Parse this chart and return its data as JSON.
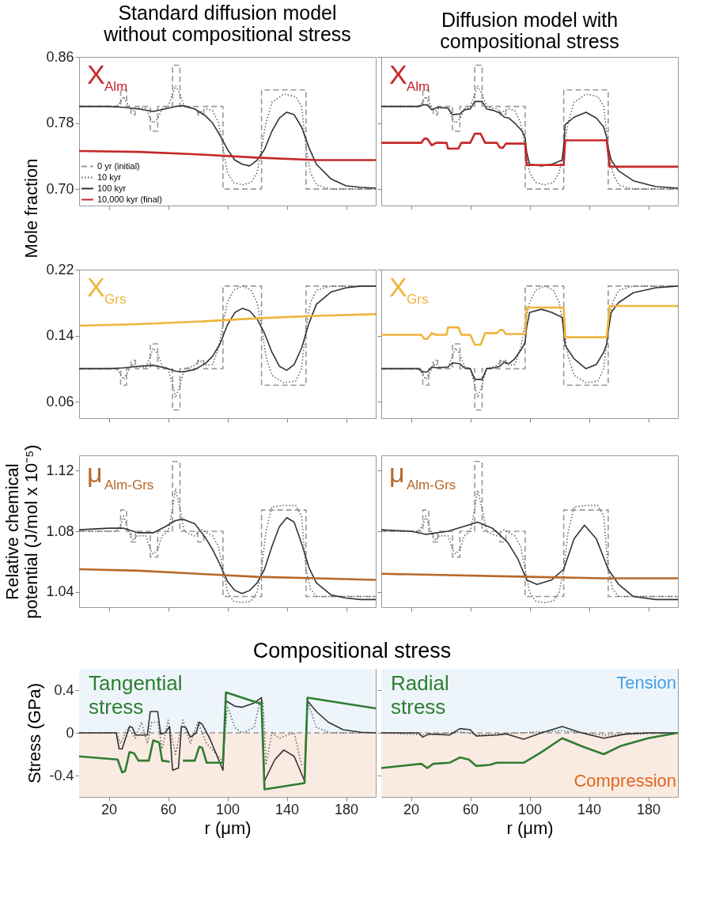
{
  "chart_data": [
    {
      "type": "line",
      "title": "Standard diffusion model without compositional stress",
      "ylabel": "Mole fraction",
      "xlim": [
        0,
        200
      ],
      "ylim": [
        0.68,
        0.86
      ],
      "xticks": [
        20,
        60,
        100,
        140,
        180
      ],
      "yticks": [
        {
          "value": 0.7,
          "label": "0.70"
        },
        0.78,
        0.86
      ],
      "tick_labels": "y",
      "annotations": [
        "X$_{Alm}$"
      ],
      "legend": "bottom left",
      "series": [
        {
          "name": "0 yr (initial)",
          "color": "#999999",
          "line_style": "dashed",
          "x": [
            0,
            28,
            28,
            32,
            32,
            35,
            35,
            38,
            38,
            48,
            48,
            53,
            53,
            63,
            63,
            68,
            68,
            80,
            80,
            84,
            84,
            97,
            97,
            123,
            123,
            153,
            153,
            200
          ],
          "values": [
            0.8,
            0.8,
            0.82,
            0.82,
            0.8,
            0.8,
            0.79,
            0.79,
            0.8,
            0.8,
            0.77,
            0.77,
            0.8,
            0.8,
            0.85,
            0.85,
            0.8,
            0.8,
            0.79,
            0.79,
            0.8,
            0.8,
            0.7,
            0.7,
            0.82,
            0.82,
            0.7,
            0.7
          ]
        },
        {
          "name": "10 kyr",
          "color": "#666666",
          "line_style": "dotted",
          "x": [
            0,
            25,
            28,
            30,
            32,
            35,
            37,
            39,
            45,
            48,
            50,
            53,
            56,
            60,
            63,
            65,
            68,
            71,
            75,
            78,
            81,
            83,
            86,
            90,
            94,
            97,
            100,
            104,
            110,
            116,
            120,
            123,
            126,
            130,
            138,
            146,
            150,
            153,
            156,
            160,
            170,
            200
          ],
          "values": [
            0.8,
            0.8,
            0.805,
            0.812,
            0.805,
            0.797,
            0.795,
            0.798,
            0.798,
            0.785,
            0.78,
            0.785,
            0.797,
            0.8,
            0.815,
            0.825,
            0.815,
            0.8,
            0.798,
            0.797,
            0.792,
            0.795,
            0.797,
            0.795,
            0.78,
            0.75,
            0.72,
            0.708,
            0.705,
            0.708,
            0.72,
            0.75,
            0.78,
            0.805,
            0.815,
            0.812,
            0.8,
            0.75,
            0.72,
            0.705,
            0.7,
            0.7
          ]
        },
        {
          "name": "100 kyr",
          "color": "#333333",
          "line_style": "solid",
          "x": [
            0,
            20,
            30,
            40,
            50,
            58,
            65,
            70,
            78,
            85,
            90,
            95,
            100,
            105,
            110,
            115,
            120,
            125,
            130,
            135,
            140,
            145,
            150,
            155,
            160,
            170,
            180,
            190,
            200
          ],
          "values": [
            0.8,
            0.8,
            0.799,
            0.797,
            0.794,
            0.797,
            0.8,
            0.801,
            0.797,
            0.789,
            0.78,
            0.765,
            0.748,
            0.735,
            0.73,
            0.728,
            0.735,
            0.748,
            0.77,
            0.786,
            0.793,
            0.79,
            0.775,
            0.75,
            0.73,
            0.712,
            0.704,
            0.702,
            0.701
          ]
        },
        {
          "name": "10,000 kyr (final)",
          "color": "#c62828",
          "line_style": "solid",
          "x": [
            0,
            40,
            80,
            120,
            160,
            200
          ],
          "values": [
            0.746,
            0.745,
            0.742,
            0.738,
            0.735,
            0.735
          ]
        }
      ]
    },
    {
      "type": "line",
      "title": "Diffusion model with compositional stress",
      "xlim": [
        0,
        200
      ],
      "ylim": [
        0.68,
        0.86
      ],
      "xticks": [
        20,
        60,
        100,
        140,
        180
      ],
      "yticks": [
        0.7,
        0.78,
        0.86
      ],
      "tick_labels": false,
      "annotations": [
        "X$_{Alm}$"
      ],
      "series": [
        {
          "color": "#999999",
          "line_style": "dashed",
          "x": [
            0,
            28,
            28,
            32,
            32,
            35,
            35,
            38,
            38,
            48,
            48,
            53,
            53,
            63,
            63,
            68,
            68,
            80,
            80,
            84,
            84,
            97,
            97,
            123,
            123,
            153,
            153,
            200
          ],
          "values": [
            0.8,
            0.8,
            0.82,
            0.82,
            0.8,
            0.8,
            0.79,
            0.79,
            0.8,
            0.8,
            0.77,
            0.77,
            0.8,
            0.8,
            0.85,
            0.85,
            0.8,
            0.8,
            0.79,
            0.79,
            0.8,
            0.8,
            0.7,
            0.7,
            0.82,
            0.82,
            0.7,
            0.7
          ]
        },
        {
          "color": "#666666",
          "line_style": "dotted",
          "x": [
            0,
            25,
            28,
            30,
            32,
            35,
            37,
            39,
            45,
            48,
            50,
            53,
            56,
            60,
            63,
            65,
            68,
            71,
            75,
            78,
            81,
            83,
            86,
            90,
            94,
            97,
            100,
            104,
            110,
            116,
            120,
            123,
            126,
            130,
            138,
            146,
            150,
            153,
            156,
            160,
            170,
            200
          ],
          "values": [
            0.8,
            0.8,
            0.805,
            0.812,
            0.805,
            0.797,
            0.795,
            0.798,
            0.798,
            0.785,
            0.78,
            0.785,
            0.797,
            0.8,
            0.815,
            0.825,
            0.815,
            0.8,
            0.798,
            0.797,
            0.792,
            0.795,
            0.797,
            0.795,
            0.78,
            0.75,
            0.72,
            0.708,
            0.705,
            0.708,
            0.72,
            0.75,
            0.78,
            0.805,
            0.815,
            0.812,
            0.8,
            0.75,
            0.72,
            0.705,
            0.7,
            0.7
          ]
        },
        {
          "color": "#333333",
          "line_style": "solid",
          "x": [
            0,
            25,
            28,
            31,
            34,
            38,
            45,
            48,
            53,
            56,
            60,
            63,
            68,
            71,
            76,
            80,
            83,
            86,
            90,
            95,
            97,
            98,
            100,
            108,
            115,
            122,
            123,
            124,
            130,
            138,
            145,
            150,
            152,
            153,
            155,
            160,
            170,
            185,
            200
          ],
          "values": [
            0.8,
            0.8,
            0.802,
            0.802,
            0.796,
            0.799,
            0.798,
            0.79,
            0.791,
            0.796,
            0.797,
            0.806,
            0.806,
            0.797,
            0.795,
            0.792,
            0.787,
            0.786,
            0.78,
            0.77,
            0.762,
            0.745,
            0.73,
            0.728,
            0.73,
            0.735,
            0.752,
            0.778,
            0.787,
            0.793,
            0.786,
            0.775,
            0.762,
            0.75,
            0.735,
            0.722,
            0.71,
            0.703,
            0.701
          ]
        },
        {
          "color": "#c62828",
          "line_style": "solid",
          "x": [
            0,
            27,
            29,
            31,
            34,
            37,
            44,
            45,
            52,
            54,
            60,
            63,
            67,
            70,
            78,
            80,
            82,
            84,
            97,
            98,
            123,
            124,
            152,
            154,
            200
          ],
          "values": [
            0.756,
            0.756,
            0.761,
            0.761,
            0.753,
            0.756,
            0.756,
            0.749,
            0.749,
            0.756,
            0.756,
            0.767,
            0.767,
            0.756,
            0.756,
            0.75,
            0.75,
            0.755,
            0.755,
            0.729,
            0.729,
            0.759,
            0.759,
            0.727,
            0.727
          ]
        }
      ]
    },
    {
      "type": "line",
      "xlim": [
        0,
        200
      ],
      "ylim": [
        0.04,
        0.22
      ],
      "xticks": [
        20,
        60,
        100,
        140,
        180
      ],
      "yticks": [
        0.06,
        0.14,
        0.22
      ],
      "tick_labels": "y",
      "annotations": [
        "X$_{Grs}$"
      ],
      "series": [
        {
          "color": "#999999",
          "line_style": "dashed",
          "x": [
            0,
            28,
            28,
            32,
            32,
            35,
            35,
            38,
            38,
            48,
            48,
            53,
            53,
            63,
            63,
            68,
            68,
            80,
            80,
            84,
            84,
            97,
            97,
            123,
            123,
            153,
            153,
            200
          ],
          "values": [
            0.1,
            0.1,
            0.08,
            0.08,
            0.1,
            0.1,
            0.11,
            0.11,
            0.1,
            0.1,
            0.13,
            0.13,
            0.1,
            0.1,
            0.05,
            0.05,
            0.1,
            0.1,
            0.11,
            0.11,
            0.1,
            0.1,
            0.2,
            0.2,
            0.08,
            0.08,
            0.2,
            0.2
          ]
        },
        {
          "color": "#666666",
          "line_style": "dotted",
          "x": [
            0,
            25,
            28,
            30,
            32,
            35,
            37,
            39,
            45,
            48,
            50,
            53,
            56,
            60,
            63,
            65,
            68,
            71,
            75,
            78,
            81,
            83,
            86,
            90,
            94,
            97,
            100,
            104,
            110,
            116,
            120,
            123,
            126,
            130,
            138,
            146,
            150,
            153,
            156,
            160,
            170,
            200
          ],
          "values": [
            0.1,
            0.1,
            0.093,
            0.087,
            0.093,
            0.103,
            0.106,
            0.102,
            0.102,
            0.115,
            0.125,
            0.118,
            0.103,
            0.1,
            0.08,
            0.065,
            0.08,
            0.1,
            0.102,
            0.104,
            0.11,
            0.108,
            0.104,
            0.105,
            0.125,
            0.155,
            0.18,
            0.195,
            0.2,
            0.195,
            0.18,
            0.15,
            0.115,
            0.092,
            0.083,
            0.085,
            0.1,
            0.15,
            0.18,
            0.195,
            0.2,
            0.2
          ]
        },
        {
          "color": "#333333",
          "line_style": "solid",
          "x": [
            0,
            20,
            30,
            40,
            50,
            58,
            65,
            70,
            78,
            85,
            90,
            95,
            100,
            105,
            110,
            115,
            120,
            125,
            130,
            135,
            140,
            145,
            150,
            155,
            160,
            170,
            180,
            190,
            200
          ],
          "values": [
            0.1,
            0.1,
            0.101,
            0.103,
            0.104,
            0.101,
            0.097,
            0.096,
            0.099,
            0.106,
            0.115,
            0.13,
            0.153,
            0.168,
            0.173,
            0.17,
            0.16,
            0.143,
            0.12,
            0.103,
            0.098,
            0.105,
            0.125,
            0.155,
            0.178,
            0.193,
            0.198,
            0.2,
            0.2
          ]
        },
        {
          "color": "#f0b43c",
          "line_style": "solid",
          "x": [
            0,
            40,
            80,
            120,
            160,
            200
          ],
          "values": [
            0.152,
            0.154,
            0.157,
            0.161,
            0.164,
            0.166
          ]
        }
      ]
    },
    {
      "type": "line",
      "xlim": [
        0,
        200
      ],
      "ylim": [
        0.04,
        0.22
      ],
      "xticks": [
        20,
        60,
        100,
        140,
        180
      ],
      "yticks": [
        0.06,
        0.14,
        0.22
      ],
      "tick_labels": false,
      "annotations": [
        "X$_{Grs}$"
      ],
      "series": [
        {
          "color": "#999999",
          "line_style": "dashed",
          "x": [
            0,
            28,
            28,
            32,
            32,
            35,
            35,
            38,
            38,
            48,
            48,
            53,
            53,
            63,
            63,
            68,
            68,
            80,
            80,
            84,
            84,
            97,
            97,
            123,
            123,
            153,
            153,
            200
          ],
          "values": [
            0.1,
            0.1,
            0.08,
            0.08,
            0.1,
            0.1,
            0.11,
            0.11,
            0.1,
            0.1,
            0.13,
            0.13,
            0.1,
            0.1,
            0.05,
            0.05,
            0.1,
            0.1,
            0.11,
            0.11,
            0.1,
            0.1,
            0.2,
            0.2,
            0.08,
            0.08,
            0.2,
            0.2
          ]
        },
        {
          "color": "#666666",
          "line_style": "dotted",
          "x": [
            0,
            25,
            28,
            30,
            32,
            35,
            37,
            39,
            45,
            48,
            50,
            53,
            56,
            60,
            63,
            65,
            68,
            71,
            75,
            78,
            81,
            83,
            86,
            90,
            94,
            97,
            100,
            104,
            110,
            116,
            120,
            123,
            126,
            130,
            138,
            146,
            150,
            153,
            156,
            160,
            170,
            200
          ],
          "values": [
            0.1,
            0.1,
            0.093,
            0.087,
            0.093,
            0.103,
            0.106,
            0.102,
            0.102,
            0.115,
            0.125,
            0.118,
            0.103,
            0.1,
            0.08,
            0.065,
            0.08,
            0.1,
            0.102,
            0.104,
            0.11,
            0.108,
            0.104,
            0.105,
            0.125,
            0.155,
            0.18,
            0.195,
            0.2,
            0.195,
            0.18,
            0.15,
            0.115,
            0.092,
            0.083,
            0.085,
            0.1,
            0.15,
            0.18,
            0.195,
            0.2,
            0.2
          ]
        },
        {
          "color": "#333333",
          "line_style": "solid",
          "x": [
            0,
            25,
            28,
            31,
            34,
            38,
            45,
            48,
            53,
            56,
            60,
            63,
            68,
            71,
            76,
            80,
            83,
            86,
            90,
            95,
            97,
            98,
            100,
            108,
            115,
            122,
            123,
            124,
            130,
            138,
            145,
            150,
            152,
            153,
            155,
            160,
            170,
            185,
            200
          ],
          "values": [
            0.1,
            0.1,
            0.096,
            0.096,
            0.102,
            0.101,
            0.102,
            0.107,
            0.106,
            0.101,
            0.1,
            0.087,
            0.087,
            0.1,
            0.101,
            0.103,
            0.108,
            0.106,
            0.112,
            0.125,
            0.132,
            0.15,
            0.168,
            0.172,
            0.168,
            0.162,
            0.145,
            0.128,
            0.112,
            0.1,
            0.105,
            0.12,
            0.13,
            0.145,
            0.168,
            0.18,
            0.192,
            0.198,
            0.2
          ]
        },
        {
          "color": "#f0b43c",
          "line_style": "solid",
          "x": [
            0,
            27,
            29,
            31,
            34,
            37,
            44,
            45,
            52,
            54,
            60,
            63,
            67,
            70,
            78,
            80,
            82,
            84,
            97,
            98,
            123,
            124,
            152,
            154,
            200
          ],
          "values": [
            0.141,
            0.141,
            0.136,
            0.136,
            0.143,
            0.141,
            0.141,
            0.15,
            0.15,
            0.141,
            0.141,
            0.129,
            0.129,
            0.143,
            0.143,
            0.147,
            0.147,
            0.142,
            0.142,
            0.174,
            0.174,
            0.138,
            0.138,
            0.176,
            0.176
          ]
        }
      ]
    },
    {
      "type": "line",
      "ylabel": "Relative chemical potential (J/mol x 10⁻⁵)",
      "xlim": [
        0,
        200
      ],
      "ylim": [
        1.03,
        1.13
      ],
      "xticks": [
        20,
        60,
        100,
        140,
        180
      ],
      "yticks": [
        1.04,
        1.08,
        1.12
      ],
      "tick_labels": "y",
      "annotations": [
        "μ$_{Alm-Grs}$"
      ],
      "series": [
        {
          "color": "#999999",
          "line_style": "dashed",
          "x": [
            0,
            28,
            28,
            32,
            32,
            35,
            35,
            38,
            38,
            48,
            48,
            53,
            53,
            63,
            63,
            68,
            68,
            80,
            80,
            84,
            84,
            97,
            97,
            123,
            123,
            153,
            153,
            200
          ],
          "values": [
            1.08,
            1.08,
            1.094,
            1.094,
            1.08,
            1.08,
            1.073,
            1.073,
            1.08,
            1.08,
            1.063,
            1.063,
            1.08,
            1.08,
            1.126,
            1.126,
            1.08,
            1.08,
            1.073,
            1.073,
            1.08,
            1.08,
            1.037,
            1.037,
            1.094,
            1.094,
            1.037,
            1.037
          ]
        },
        {
          "color": "#666666",
          "line_style": "dotted",
          "x": [
            0,
            25,
            28,
            30,
            32,
            35,
            37,
            39,
            45,
            48,
            50,
            53,
            56,
            60,
            63,
            65,
            68,
            71,
            75,
            78,
            81,
            83,
            86,
            90,
            94,
            97,
            100,
            104,
            110,
            116,
            120,
            123,
            126,
            130,
            138,
            146,
            150,
            153,
            156,
            160,
            170,
            200
          ],
          "values": [
            1.08,
            1.08,
            1.084,
            1.09,
            1.084,
            1.076,
            1.074,
            1.077,
            1.077,
            1.068,
            1.065,
            1.068,
            1.077,
            1.08,
            1.095,
            1.108,
            1.095,
            1.08,
            1.078,
            1.077,
            1.08,
            1.081,
            1.079,
            1.077,
            1.07,
            1.055,
            1.04,
            1.034,
            1.033,
            1.034,
            1.04,
            1.055,
            1.08,
            1.096,
            1.097,
            1.097,
            1.09,
            1.055,
            1.042,
            1.037,
            1.037,
            1.037
          ]
        },
        {
          "color": "#333333",
          "line_style": "solid",
          "x": [
            0,
            20,
            30,
            40,
            50,
            58,
            65,
            70,
            78,
            85,
            90,
            95,
            100,
            105,
            110,
            115,
            120,
            125,
            130,
            135,
            140,
            145,
            150,
            155,
            160,
            170,
            180,
            190,
            200
          ],
          "values": [
            1.081,
            1.082,
            1.082,
            1.079,
            1.079,
            1.083,
            1.087,
            1.088,
            1.085,
            1.076,
            1.068,
            1.058,
            1.047,
            1.041,
            1.039,
            1.041,
            1.046,
            1.055,
            1.07,
            1.083,
            1.089,
            1.086,
            1.072,
            1.056,
            1.046,
            1.038,
            1.036,
            1.035,
            1.035
          ]
        },
        {
          "color": "#b8692a",
          "line_style": "solid",
          "x": [
            0,
            40,
            80,
            120,
            160,
            200
          ],
          "values": [
            1.055,
            1.054,
            1.052,
            1.05,
            1.049,
            1.048
          ]
        }
      ]
    },
    {
      "type": "line",
      "xlim": [
        0,
        200
      ],
      "ylim": [
        1.03,
        1.13
      ],
      "xticks": [
        20,
        60,
        100,
        140,
        180
      ],
      "yticks": [
        1.04,
        1.08,
        1.12
      ],
      "tick_labels": false,
      "annotations": [
        "μ$_{Alm-Grs}$"
      ],
      "series": [
        {
          "color": "#999999",
          "line_style": "dashed",
          "x": [
            0,
            28,
            28,
            32,
            32,
            35,
            35,
            38,
            38,
            48,
            48,
            53,
            53,
            63,
            63,
            68,
            68,
            80,
            80,
            84,
            84,
            97,
            97,
            123,
            123,
            153,
            153,
            200
          ],
          "values": [
            1.08,
            1.08,
            1.094,
            1.094,
            1.08,
            1.08,
            1.073,
            1.073,
            1.08,
            1.08,
            1.063,
            1.063,
            1.08,
            1.08,
            1.126,
            1.126,
            1.08,
            1.08,
            1.073,
            1.073,
            1.08,
            1.08,
            1.037,
            1.037,
            1.094,
            1.094,
            1.037,
            1.037
          ]
        },
        {
          "color": "#666666",
          "line_style": "dotted",
          "x": [
            0,
            25,
            28,
            30,
            32,
            35,
            37,
            39,
            45,
            48,
            50,
            53,
            56,
            60,
            63,
            65,
            68,
            71,
            75,
            78,
            81,
            83,
            86,
            90,
            94,
            97,
            100,
            104,
            110,
            116,
            120,
            123,
            126,
            130,
            138,
            146,
            150,
            153,
            156,
            160,
            170,
            200
          ],
          "values": [
            1.08,
            1.08,
            1.084,
            1.09,
            1.084,
            1.076,
            1.074,
            1.077,
            1.077,
            1.068,
            1.065,
            1.068,
            1.077,
            1.08,
            1.095,
            1.107,
            1.095,
            1.08,
            1.078,
            1.077,
            1.08,
            1.081,
            1.079,
            1.077,
            1.07,
            1.055,
            1.04,
            1.034,
            1.033,
            1.034,
            1.04,
            1.055,
            1.08,
            1.096,
            1.097,
            1.097,
            1.09,
            1.055,
            1.042,
            1.037,
            1.037,
            1.037
          ]
        },
        {
          "color": "#333333",
          "line_style": "solid",
          "x": [
            0,
            20,
            30,
            45,
            55,
            65,
            75,
            85,
            92,
            98,
            105,
            115,
            123,
            130,
            137,
            145,
            153,
            160,
            170,
            185,
            200
          ],
          "values": [
            1.081,
            1.08,
            1.078,
            1.08,
            1.083,
            1.086,
            1.082,
            1.073,
            1.062,
            1.048,
            1.045,
            1.048,
            1.055,
            1.075,
            1.084,
            1.075,
            1.055,
            1.045,
            1.037,
            1.035,
            1.035
          ]
        },
        {
          "color": "#b8692a",
          "line_style": "solid",
          "x": [
            0,
            100,
            150,
            200
          ],
          "values": [
            1.052,
            1.05,
            1.049,
            1.049
          ]
        }
      ]
    },
    {
      "type": "line",
      "title": "Compositional stress",
      "xlabel": "r (μm)",
      "ylabel": "Stress (GPa)",
      "xlim": [
        0,
        200
      ],
      "ylim": [
        -0.6,
        0.6
      ],
      "xticks": [
        20,
        60,
        100,
        140,
        180
      ],
      "yticks": [
        -0.4,
        0,
        0.4
      ],
      "annotations": [
        "Tangential stress"
      ],
      "bands": [
        {
          "axis": "y",
          "from": 0,
          "to": 0.6,
          "color": "#eef5fa"
        },
        {
          "axis": "y",
          "from": -0.6,
          "to": 0,
          "color": "#faebe2"
        }
      ],
      "series": [
        {
          "color": "#999999",
          "line_style": "dashed",
          "x": [
            0,
            200
          ],
          "values": [
            0,
            0
          ]
        },
        {
          "color": "#666666",
          "line_style": "dotted",
          "x": [
            0,
            25,
            28,
            33,
            38,
            42,
            46,
            49,
            53,
            56,
            60,
            65,
            70,
            75,
            80,
            86,
            96,
            97,
            100,
            105,
            110,
            118,
            122,
            124,
            126,
            130,
            135,
            145,
            150,
            152,
            154,
            160,
            170,
            200
          ],
          "values": [
            0,
            0,
            -0.1,
            0.05,
            -0.05,
            0.1,
            -0.1,
            0.1,
            0.1,
            -0.15,
            0.12,
            -0.2,
            0.12,
            -0.1,
            0.1,
            -0.1,
            -0.25,
            -0.25,
            0.25,
            0.05,
            0,
            0.05,
            0.3,
            0.3,
            -0.3,
            0,
            -0.05,
            0,
            -0.3,
            -0.3,
            0.3,
            0.05,
            0,
            0
          ]
        },
        {
          "color": "#333333",
          "line_style": "solid",
          "x": [
            0,
            25,
            27,
            29,
            34,
            36,
            38,
            46,
            48,
            53,
            55,
            58,
            61,
            63,
            67,
            69,
            72,
            75,
            79,
            81,
            83,
            88,
            97,
            99,
            105,
            110,
            118,
            123,
            125,
            132,
            138,
            145,
            152,
            154,
            160,
            168,
            178,
            190,
            200
          ],
          "values": [
            0,
            0,
            -0.15,
            -0.15,
            0.06,
            0.05,
            -0.02,
            -0.02,
            0.2,
            0.2,
            -0.01,
            0,
            0.06,
            -0.35,
            -0.33,
            0.06,
            0.05,
            -0.04,
            0,
            0.1,
            0.08,
            -0.05,
            -0.35,
            0.3,
            0.25,
            0.24,
            0.28,
            0.33,
            -0.45,
            -0.25,
            -0.16,
            -0.22,
            -0.45,
            0.3,
            0.2,
            0.1,
            0.03,
            0.005,
            0
          ]
        },
        {
          "color": "#2e7d32",
          "line_style": "solid",
          "x": [
            0,
            26,
            29,
            31,
            34,
            37,
            40,
            47,
            50,
            54,
            56,
            61,
            64,
            68,
            70,
            78,
            81,
            83,
            86,
            97,
            99,
            123,
            125,
            152,
            154,
            200
          ],
          "values": [
            -0.22,
            -0.25,
            -0.37,
            -0.36,
            -0.18,
            -0.19,
            -0.26,
            -0.26,
            -0.07,
            -0.09,
            -0.26,
            -0.27,
            null,
            null,
            -0.26,
            -0.26,
            -0.13,
            -0.14,
            -0.28,
            -0.28,
            0.38,
            0.27,
            -0.53,
            -0.47,
            0.33,
            0.23
          ]
        }
      ]
    },
    {
      "type": "line",
      "xlabel": "r (μm)",
      "xlim": [
        0,
        200
      ],
      "ylim": [
        -0.6,
        0.6
      ],
      "xticks": [
        20,
        60,
        100,
        140,
        180
      ],
      "yticks": [
        -0.4,
        0,
        0.4
      ],
      "tick_labels": "x",
      "annotations": [
        "Radial stress"
      ],
      "bands": [
        {
          "axis": "y",
          "from": 0,
          "to": 0.6,
          "color": "#eef5fa",
          "label": "Tension"
        },
        {
          "axis": "y",
          "from": -0.6,
          "to": 0,
          "color": "#faebe2",
          "label": "Compression"
        }
      ],
      "series": [
        {
          "color": "#999999",
          "line_style": "dashed",
          "x": [
            0,
            200
          ],
          "values": [
            0,
            0
          ]
        },
        {
          "color": "#666666",
          "line_style": "dotted",
          "x": [
            0,
            30,
            55,
            65,
            122,
            150,
            200
          ],
          "values": [
            0,
            -0.02,
            0.01,
            -0.02,
            0.02,
            -0.02,
            0
          ]
        },
        {
          "color": "#333333",
          "line_style": "solid",
          "x": [
            0,
            25,
            28,
            32,
            46,
            53,
            60,
            64,
            78,
            84,
            96,
            108,
            122,
            135,
            150,
            165,
            180,
            200
          ],
          "values": [
            0,
            0,
            -0.04,
            -0.01,
            -0.02,
            0.04,
            0.03,
            -0.03,
            -0.02,
            -0.01,
            -0.06,
            0,
            0.06,
            0,
            -0.05,
            -0.01,
            0,
            0
          ]
        },
        {
          "color": "#2e7d32",
          "line_style": "solid",
          "x": [
            0,
            27,
            31,
            35,
            46,
            53,
            59,
            64,
            73,
            78,
            96,
            108,
            122,
            136,
            150,
            162,
            180,
            200
          ],
          "values": [
            -0.33,
            -0.29,
            -0.33,
            -0.29,
            -0.28,
            -0.23,
            -0.25,
            -0.31,
            -0.3,
            -0.28,
            -0.28,
            -0.18,
            -0.05,
            -0.13,
            -0.2,
            -0.12,
            -0.05,
            0
          ]
        }
      ]
    }
  ]
}
